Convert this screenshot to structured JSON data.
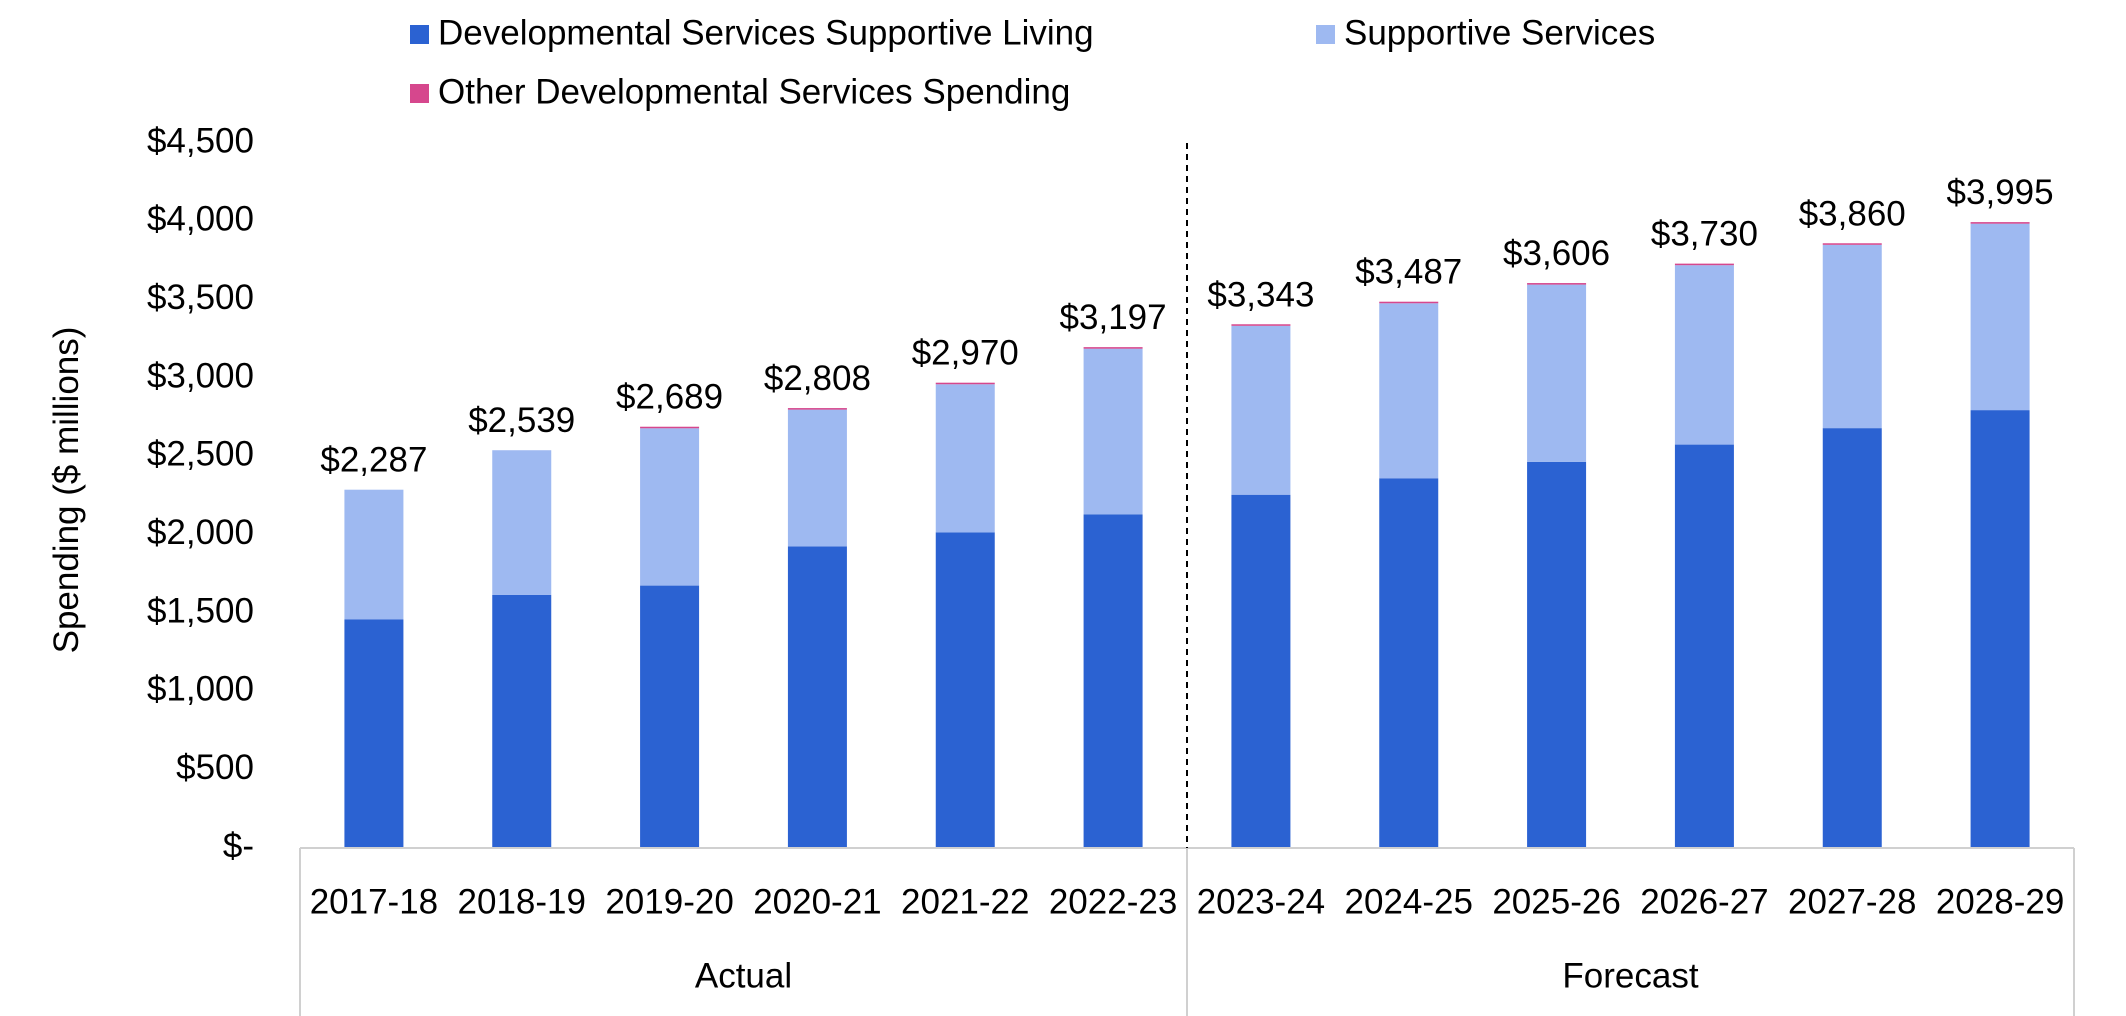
{
  "chart_data": {
    "type": "bar",
    "stacked": true,
    "title": "",
    "xlabel": "",
    "ylabel": "Spending ($ millions)",
    "ylim": [
      0,
      4500
    ],
    "yticks": [
      0,
      500,
      1000,
      1500,
      2000,
      2500,
      3000,
      3500,
      4000,
      4500
    ],
    "ytick_labels": [
      "$-",
      "$500",
      "$1,000",
      "$1,500",
      "$2,000",
      "$2,500",
      "$3,000",
      "$3,500",
      "$4,000",
      "$4,500"
    ],
    "grid": false,
    "legend_position": "top",
    "categories": [
      "2017-18",
      "2018-19",
      "2019-20",
      "2020-21",
      "2021-22",
      "2022-23",
      "2023-24",
      "2024-25",
      "2025-26",
      "2026-27",
      "2027-28",
      "2028-29"
    ],
    "groups": [
      {
        "label": "Actual",
        "count": 6
      },
      {
        "label": "Forecast",
        "count": 6
      }
    ],
    "series": [
      {
        "name": "Developmental Services Supportive Living",
        "color": "#2b62d2",
        "values": [
          1460,
          1615,
          1675,
          1925,
          2015,
          2130,
          2255,
          2360,
          2465,
          2575,
          2680,
          2795
        ]
      },
      {
        "name": "Supportive Services",
        "color": "#9eb9f1",
        "values": [
          827,
          924,
          1004,
          873,
          945,
          1057,
          1078,
          1117,
          1131,
          1145,
          1170,
          1190
        ]
      },
      {
        "name": "Other Developmental Services Spending",
        "color": "#d6478d",
        "values": [
          0,
          0,
          10,
          10,
          10,
          10,
          10,
          10,
          10,
          10,
          10,
          10
        ]
      }
    ],
    "totals": [
      2287,
      2539,
      2689,
      2808,
      2970,
      3197,
      3343,
      3487,
      3606,
      3730,
      3860,
      3995
    ],
    "total_labels": [
      "$2,287",
      "$2,539",
      "$2,689",
      "$2,808",
      "$2,970",
      "$3,197",
      "$3,343",
      "$3,487",
      "$3,606",
      "$3,730",
      "$3,860",
      "$3,995"
    ],
    "divider_after_category": "2022-23"
  }
}
